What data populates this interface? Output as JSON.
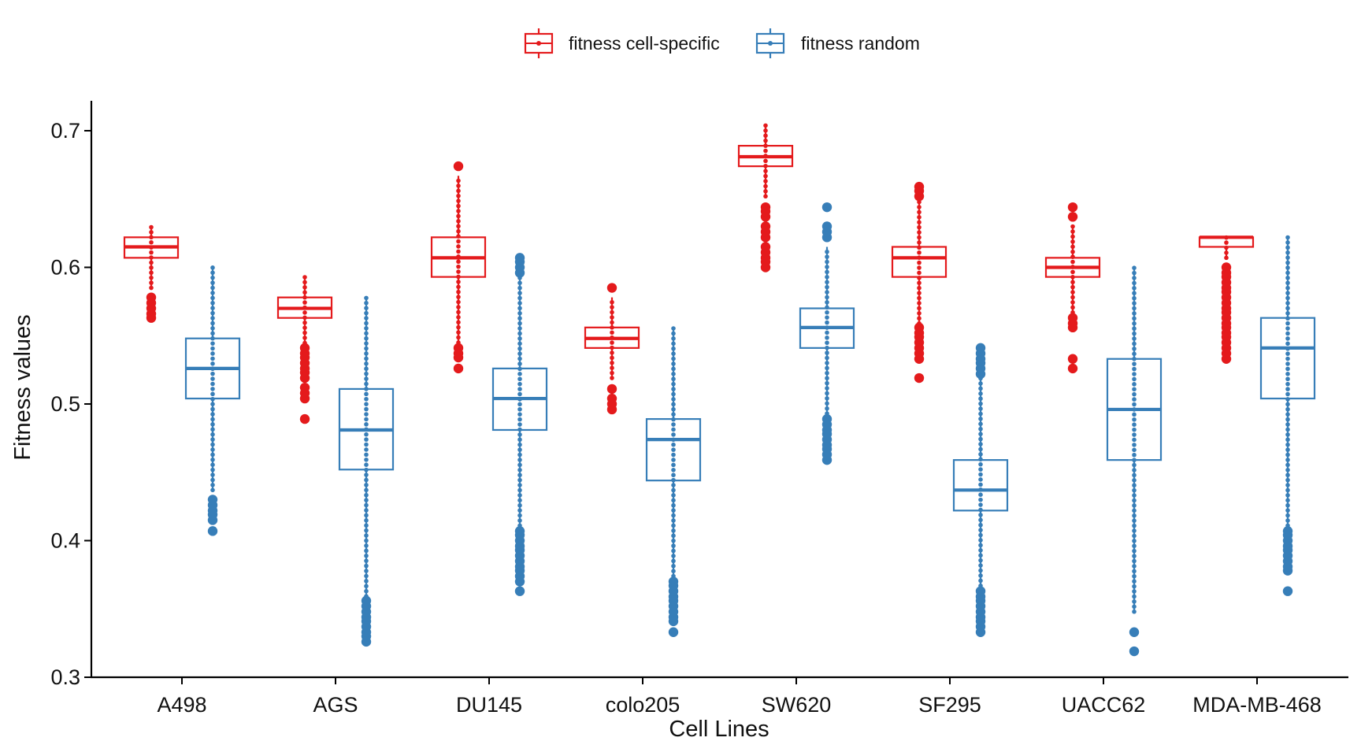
{
  "chart_data": {
    "type": "boxplot",
    "xlabel": "Cell Lines",
    "ylabel": "Fitness values",
    "ylim": [
      0.3,
      0.72
    ],
    "yticks": [
      0.3,
      0.4,
      0.5,
      0.6,
      0.7
    ],
    "ytick_labels": [
      "0.3",
      "0.4",
      "0.5",
      "0.6",
      "0.7"
    ],
    "grid": false,
    "legend_position": "top",
    "categories": [
      "A498",
      "AGS",
      "DU145",
      "colo205",
      "SW620",
      "SF295",
      "UACC62",
      "MDA-MB-468"
    ],
    "series": [
      {
        "name": "fitness cell-specific",
        "color": "#e41a1c",
        "boxes": [
          {
            "whisker_low": 0.585,
            "q1": 0.607,
            "median": 0.615,
            "q3": 0.622,
            "whisker_high": 0.63,
            "outliers": [
              0.563,
              0.566,
              0.57,
              0.574,
              0.578
            ]
          },
          {
            "whisker_low": 0.541,
            "q1": 0.563,
            "median": 0.57,
            "q3": 0.578,
            "whisker_high": 0.593,
            "outliers": [
              0.489,
              0.504,
              0.508,
              0.512,
              0.519,
              0.523,
              0.526,
              0.53,
              0.534,
              0.537,
              0.541
            ]
          },
          {
            "whisker_low": 0.545,
            "q1": 0.593,
            "median": 0.607,
            "q3": 0.622,
            "whisker_high": 0.667,
            "outliers": [
              0.526,
              0.534,
              0.537,
              0.541,
              0.674
            ]
          },
          {
            "whisker_low": 0.519,
            "q1": 0.541,
            "median": 0.548,
            "q3": 0.556,
            "whisker_high": 0.578,
            "outliers": [
              0.496,
              0.5,
              0.504,
              0.511,
              0.585
            ]
          },
          {
            "whisker_low": 0.652,
            "q1": 0.674,
            "median": 0.681,
            "q3": 0.689,
            "whisker_high": 0.704,
            "outliers": [
              0.6,
              0.604,
              0.607,
              0.611,
              0.615,
              0.622,
              0.626,
              0.63,
              0.637,
              0.641,
              0.644
            ]
          },
          {
            "whisker_low": 0.559,
            "q1": 0.593,
            "median": 0.607,
            "q3": 0.615,
            "whisker_high": 0.648,
            "outliers": [
              0.519,
              0.533,
              0.537,
              0.541,
              0.545,
              0.549,
              0.552,
              0.556,
              0.652,
              0.656,
              0.659
            ]
          },
          {
            "whisker_low": 0.567,
            "q1": 0.593,
            "median": 0.6,
            "q3": 0.607,
            "whisker_high": 0.63,
            "outliers": [
              0.526,
              0.533,
              0.556,
              0.559,
              0.563,
              0.637,
              0.644
            ]
          },
          {
            "whisker_low": 0.607,
            "q1": 0.615,
            "median": 0.622,
            "q3": 0.622,
            "whisker_high": 0.622,
            "outliers": [
              0.533,
              0.537,
              0.541,
              0.545,
              0.549,
              0.552,
              0.556,
              0.559,
              0.563,
              0.567,
              0.57,
              0.574,
              0.578,
              0.582,
              0.585,
              0.589,
              0.593,
              0.596,
              0.6
            ]
          }
        ]
      },
      {
        "name": "fitness random",
        "color": "#377eb8",
        "boxes": [
          {
            "whisker_low": 0.437,
            "q1": 0.504,
            "median": 0.526,
            "q3": 0.548,
            "whisker_high": 0.6,
            "outliers": [
              0.407,
              0.415,
              0.419,
              0.422,
              0.426,
              0.43
            ]
          },
          {
            "whisker_low": 0.326,
            "q1": 0.452,
            "median": 0.481,
            "q3": 0.511,
            "whisker_high": 0.578,
            "outliers": [
              0.326,
              0.33,
              0.333,
              0.337,
              0.341,
              0.344,
              0.348,
              0.352,
              0.356
            ]
          },
          {
            "whisker_low": 0.411,
            "q1": 0.481,
            "median": 0.504,
            "q3": 0.526,
            "whisker_high": 0.593,
            "outliers": [
              0.363,
              0.37,
              0.374,
              0.378,
              0.381,
              0.385,
              0.389,
              0.393,
              0.396,
              0.4,
              0.404,
              0.407,
              0.596,
              0.6,
              0.604,
              0.607
            ]
          },
          {
            "whisker_low": 0.374,
            "q1": 0.444,
            "median": 0.474,
            "q3": 0.489,
            "whisker_high": 0.556,
            "outliers": [
              0.333,
              0.341,
              0.344,
              0.348,
              0.352,
              0.356,
              0.359,
              0.363,
              0.367,
              0.37
            ]
          },
          {
            "whisker_low": 0.493,
            "q1": 0.541,
            "median": 0.556,
            "q3": 0.57,
            "whisker_high": 0.615,
            "outliers": [
              0.459,
              0.463,
              0.467,
              0.47,
              0.474,
              0.478,
              0.481,
              0.485,
              0.489,
              0.622,
              0.626,
              0.63,
              0.644
            ]
          },
          {
            "whisker_low": 0.367,
            "q1": 0.422,
            "median": 0.437,
            "q3": 0.459,
            "whisker_high": 0.519,
            "outliers": [
              0.333,
              0.337,
              0.341,
              0.344,
              0.348,
              0.352,
              0.356,
              0.359,
              0.363,
              0.522,
              0.526,
              0.53,
              0.533,
              0.537,
              0.541
            ]
          },
          {
            "whisker_low": 0.348,
            "q1": 0.459,
            "median": 0.496,
            "q3": 0.533,
            "whisker_high": 0.6,
            "outliers": [
              0.319,
              0.333
            ]
          },
          {
            "whisker_low": 0.411,
            "q1": 0.504,
            "median": 0.541,
            "q3": 0.563,
            "whisker_high": 0.622,
            "outliers": [
              0.363,
              0.378,
              0.381,
              0.385,
              0.389,
              0.393,
              0.396,
              0.4,
              0.404,
              0.407
            ]
          }
        ]
      }
    ]
  }
}
